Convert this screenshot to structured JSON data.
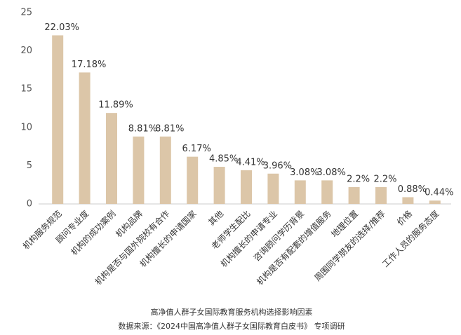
{
  "chart_data": {
    "type": "bar",
    "title": "高净值人群子女国际教育服务机构选择影响因素",
    "source": "数据来源：《2024中国高净值人群子女国际教育白皮书》 专项调研",
    "categories": [
      "机构服务规范",
      "顾问专业度",
      "机构的成功案例",
      "机构品牌",
      "机构是否与国外院校有合作",
      "机构擅长的申请国家",
      "其他",
      "老师学生配比",
      "机构擅长的申请专业",
      "咨询顾问学历背景",
      "机构是否有配套的增值服务",
      "地理位置",
      "周围同学朋友的选择/推荐",
      "价格",
      "工作人员的服务态度"
    ],
    "values": [
      22.03,
      17.18,
      11.89,
      8.81,
      8.81,
      6.17,
      4.85,
      4.41,
      3.96,
      3.08,
      3.08,
      2.2,
      2.2,
      0.88,
      0.44
    ],
    "value_labels": [
      "22.03%",
      "17.18%",
      "11.89%",
      "8.81%",
      "8.81%",
      "6.17%",
      "4.85%",
      "4.41%",
      "3.96%",
      "3.08%",
      "3.08%",
      "2.2%",
      "2.2%",
      "0.88%",
      "0.44%"
    ],
    "color": "#dcc6a8",
    "ylim": [
      0,
      25
    ],
    "yticks": [
      0,
      5,
      10,
      15,
      20,
      25
    ],
    "grid": false
  }
}
